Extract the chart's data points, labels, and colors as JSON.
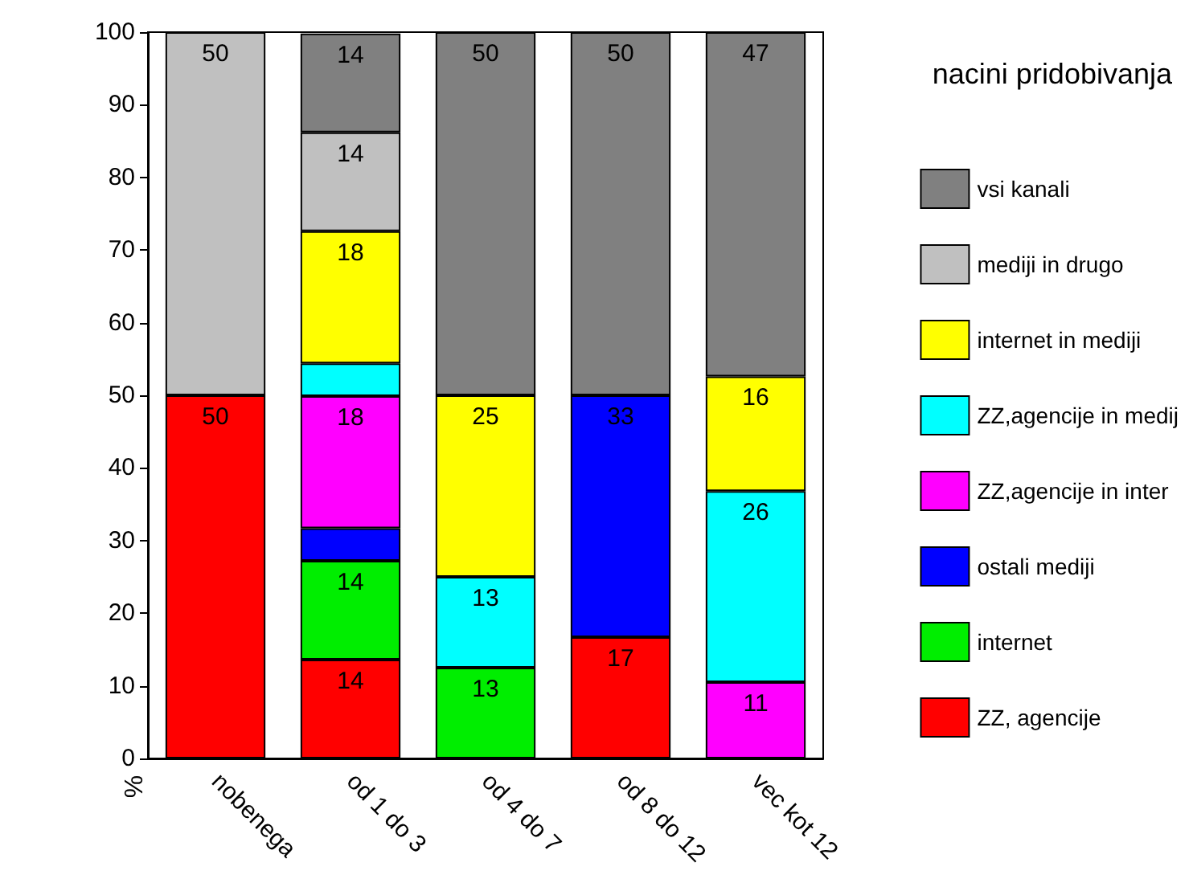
{
  "chart_data": {
    "type": "bar",
    "stacked": true,
    "ylabel": "%",
    "legend_title": "nacini pridobivanja",
    "legend": "right",
    "categories": [
      "nobenega",
      "od 1 do 3",
      "od 4 do 7",
      "od 8 do 12",
      "vec kot 12"
    ],
    "ylim": [
      0,
      100
    ],
    "yticks": [
      0,
      10,
      20,
      30,
      40,
      50,
      60,
      70,
      80,
      90,
      100
    ],
    "series": [
      {
        "name": "ZZ, agencije",
        "color": "#ff0000",
        "values": [
          50,
          13.6,
          null,
          16.7,
          null
        ],
        "value_labels": [
          "50",
          "14",
          null,
          "17",
          null
        ]
      },
      {
        "name": "internet",
        "color": "#00ee00",
        "values": [
          null,
          13.6,
          12.5,
          null,
          null
        ],
        "value_labels": [
          null,
          "14",
          "13",
          null,
          null
        ]
      },
      {
        "name": "ostali mediji",
        "color": "#0000ff",
        "values": [
          null,
          4.5,
          null,
          33.3,
          null
        ],
        "value_labels": [
          null,
          null,
          null,
          "33",
          null
        ]
      },
      {
        "name": "ZZ,agencije in inter",
        "color": "#ff00ff",
        "values": [
          null,
          18.2,
          null,
          null,
          10.5
        ],
        "value_labels": [
          null,
          "18",
          null,
          null,
          "11"
        ]
      },
      {
        "name": "ZZ,agencije in medij",
        "color": "#00ffff",
        "values": [
          null,
          4.5,
          12.5,
          null,
          26.3
        ],
        "value_labels": [
          null,
          null,
          "13",
          null,
          "26"
        ]
      },
      {
        "name": "internet in mediji",
        "color": "#ffff00",
        "values": [
          null,
          18.2,
          25,
          null,
          15.8
        ],
        "value_labels": [
          null,
          "18",
          "25",
          null,
          "16"
        ]
      },
      {
        "name": "mediji in drugo",
        "color": "#c0c0c0",
        "values": [
          50,
          13.6,
          null,
          null,
          null
        ],
        "value_labels": [
          "50",
          "14",
          null,
          null,
          null
        ]
      },
      {
        "name": "vsi kanali",
        "color": "#808080",
        "values": [
          null,
          13.6,
          50,
          50,
          47.4
        ],
        "value_labels": [
          null,
          "14",
          "50",
          "50",
          "47"
        ]
      }
    ]
  }
}
